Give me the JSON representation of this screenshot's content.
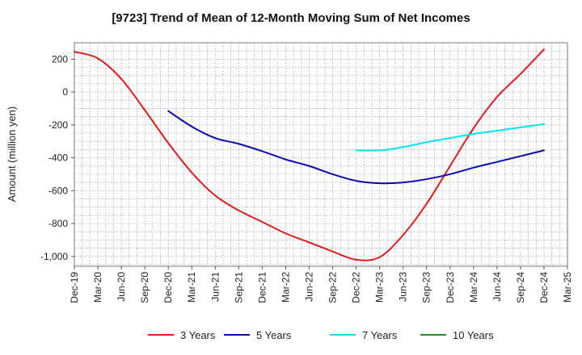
{
  "chart_data": {
    "type": "line",
    "title": "[9723]  Trend of Mean of 12-Month Moving Sum of Net Incomes",
    "ylabel": "Amount (million yen)",
    "xlabel": "",
    "ylim": [
      -1060,
      300
    ],
    "y_ticks": [
      200,
      0,
      -200,
      -400,
      -600,
      -800,
      -1000
    ],
    "y_tick_labels": [
      "200",
      "0",
      "-200",
      "-400",
      "-600",
      "-800",
      "-1,000"
    ],
    "x_tick_labels": [
      "Dec-19",
      "Mar-20",
      "Jun-20",
      "Sep-20",
      "Dec-20",
      "Mar-21",
      "Jun-21",
      "Sep-21",
      "Dec-21",
      "Mar-22",
      "Jun-22",
      "Sep-22",
      "Dec-22",
      "Mar-23",
      "Jun-23",
      "Sep-23",
      "Dec-23",
      "Mar-24",
      "Jun-24",
      "Sep-24",
      "Dec-24",
      "Mar-25"
    ],
    "grid": true,
    "legend_position": "bottom",
    "series": [
      {
        "name": "3 Years",
        "color": "#e41a1c",
        "points": [
          [
            "Dec-19",
            245
          ],
          [
            "Mar-20",
            205
          ],
          [
            "Jun-20",
            80
          ],
          [
            "Sep-20",
            -110
          ],
          [
            "Dec-20",
            -310
          ],
          [
            "Mar-21",
            -490
          ],
          [
            "Jun-21",
            -630
          ],
          [
            "Sep-21",
            -720
          ],
          [
            "Dec-21",
            -790
          ],
          [
            "Mar-22",
            -860
          ],
          [
            "Jun-22",
            -915
          ],
          [
            "Sep-22",
            -970
          ],
          [
            "Dec-22",
            -1020
          ],
          [
            "Mar-23",
            -1005
          ],
          [
            "Jun-23",
            -870
          ],
          [
            "Sep-23",
            -680
          ],
          [
            "Dec-23",
            -450
          ],
          [
            "Mar-24",
            -220
          ],
          [
            "Jun-24",
            -30
          ],
          [
            "Sep-24",
            110
          ],
          [
            "Dec-24",
            260
          ]
        ]
      },
      {
        "name": "5 Years",
        "color": "#0a0ab4",
        "points": [
          [
            "Dec-20",
            -115
          ],
          [
            "Mar-21",
            -210
          ],
          [
            "Jun-21",
            -280
          ],
          [
            "Sep-21",
            -315
          ],
          [
            "Dec-21",
            -360
          ],
          [
            "Mar-22",
            -410
          ],
          [
            "Jun-22",
            -450
          ],
          [
            "Sep-22",
            -500
          ],
          [
            "Dec-22",
            -540
          ],
          [
            "Mar-23",
            -555
          ],
          [
            "Jun-23",
            -550
          ],
          [
            "Sep-23",
            -530
          ],
          [
            "Dec-23",
            -500
          ],
          [
            "Mar-24",
            -460
          ],
          [
            "Jun-24",
            -425
          ],
          [
            "Sep-24",
            -390
          ],
          [
            "Dec-24",
            -355
          ]
        ]
      },
      {
        "name": "7 Years",
        "color": "#00e5ee",
        "points": [
          [
            "Dec-22",
            -355
          ],
          [
            "Mar-23",
            -355
          ],
          [
            "Jun-23",
            -335
          ],
          [
            "Sep-23",
            -305
          ],
          [
            "Dec-23",
            -280
          ],
          [
            "Mar-24",
            -255
          ],
          [
            "Jun-24",
            -235
          ],
          [
            "Sep-24",
            -215
          ],
          [
            "Dec-24",
            -195
          ]
        ]
      },
      {
        "name": "10 Years",
        "color": "#228b22",
        "points": []
      }
    ]
  }
}
